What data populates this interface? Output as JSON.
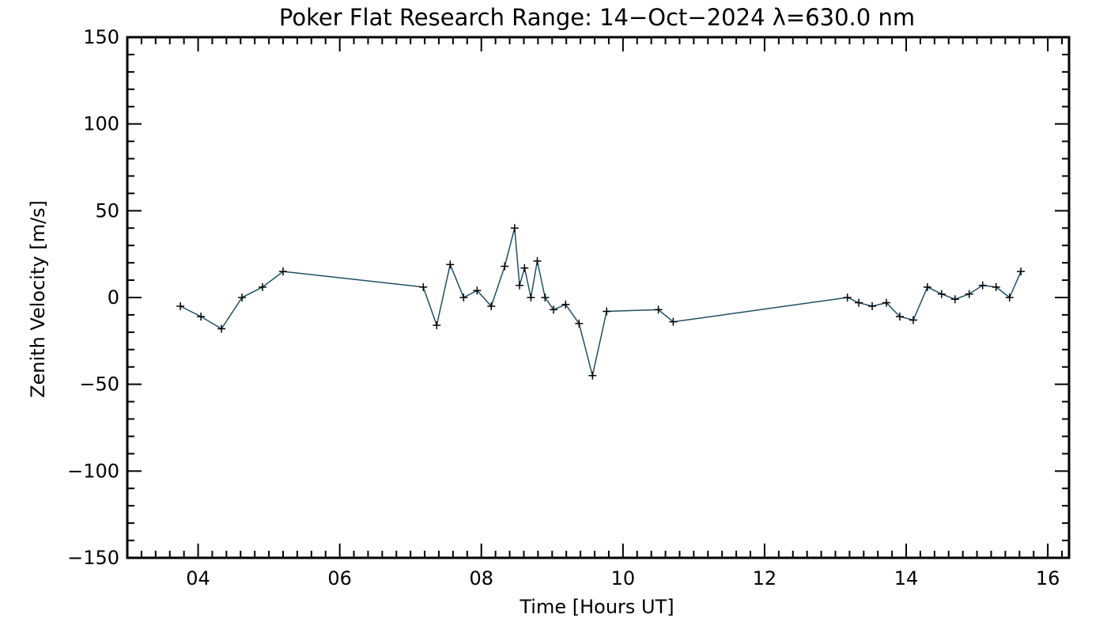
{
  "chart_data": {
    "type": "line",
    "title": "Poker Flat Research Range: 14−Oct−2024 λ=630.0 nm",
    "xlabel": "Time [Hours UT]",
    "ylabel": "Zenith Velocity [m/s]",
    "xlim": [
      3.0,
      16.3
    ],
    "ylim": [
      -150,
      150
    ],
    "x_ticks": [
      4,
      6,
      8,
      10,
      12,
      14,
      16
    ],
    "x_tick_labels": [
      "04",
      "06",
      "08",
      "10",
      "12",
      "14",
      "16"
    ],
    "x_minor_step": 0.2,
    "y_ticks": [
      -150,
      -100,
      -50,
      0,
      50,
      100,
      150
    ],
    "y_tick_labels": [
      "−150",
      "−100",
      "−50",
      "0",
      "50",
      "100",
      "150"
    ],
    "y_minor_step": 10,
    "grid": false,
    "series": [
      {
        "name": "630.0 nm",
        "line_color": "#1f4e66",
        "marker": "+",
        "marker_color": "#000000",
        "x": [
          3.75,
          4.04,
          4.33,
          4.62,
          4.91,
          5.2,
          7.18,
          7.37,
          7.56,
          7.75,
          7.94,
          8.14,
          8.33,
          8.47,
          8.54,
          8.61,
          8.7,
          8.79,
          8.9,
          9.02,
          9.19,
          9.38,
          9.57,
          9.77,
          10.5,
          10.71,
          13.17,
          13.33,
          13.52,
          13.72,
          13.91,
          14.1,
          14.3,
          14.5,
          14.69,
          14.89,
          15.08,
          15.27,
          15.46,
          15.62
        ],
        "y": [
          -5,
          -11,
          -18,
          0,
          6,
          15,
          6,
          -16,
          19,
          0,
          4,
          -5,
          18,
          40,
          7,
          17,
          0,
          21,
          0,
          -7,
          -4,
          -15,
          -45,
          -8,
          -7,
          -14,
          0,
          -3,
          -5,
          -3,
          -11,
          -13,
          6,
          2,
          -1,
          2,
          7,
          6,
          0,
          15
        ]
      }
    ]
  }
}
